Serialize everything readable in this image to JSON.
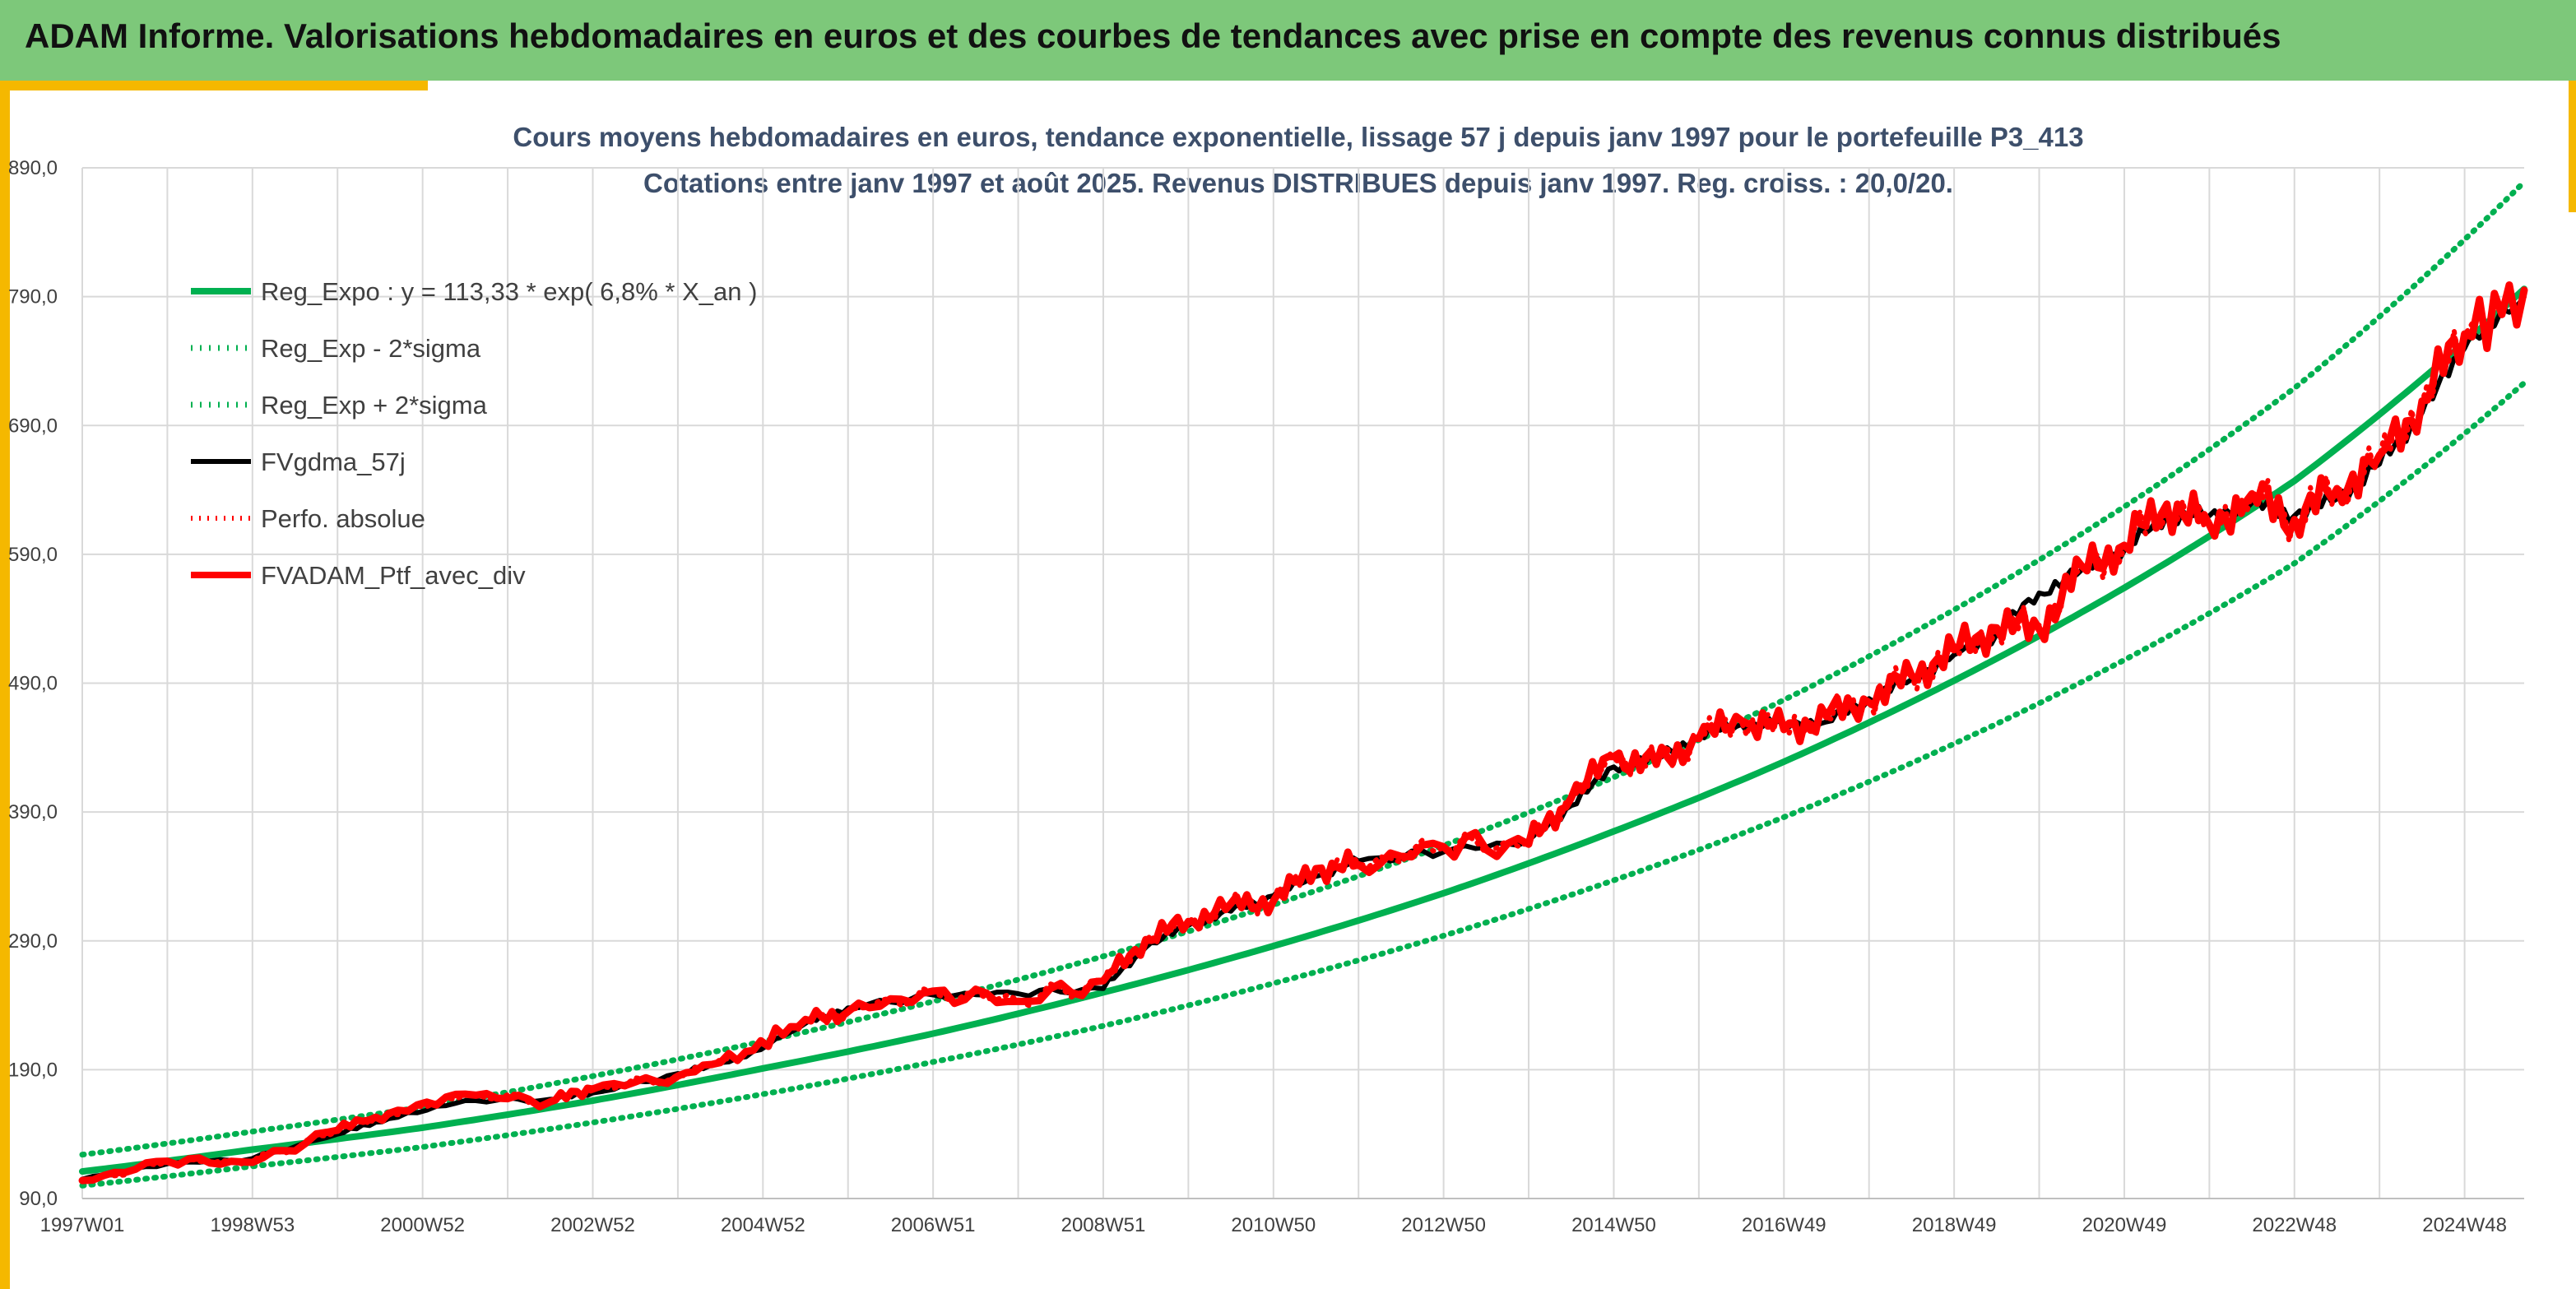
{
  "header": {
    "title": "ADAM Informe. Valorisations hebdomadaires en euros et des courbes de tendances avec prise en compte des revenus connus distribués"
  },
  "colors": {
    "header_bg": "#7dc87a",
    "accent": "#f5b800",
    "reg_expo": "#00b050",
    "fvgdma": "#000000",
    "perf_abs": "#ff0000",
    "fvadam": "#ff0000",
    "grid": "#d9d9d9"
  },
  "chart_data": {
    "type": "line",
    "title": "Cours moyens hebdomadaires en euros, tendance exponentielle, lissage 57 j depuis janv 1997 pour le portefeuille P3_413",
    "subtitle": "Cotations entre janv 1997 et août 2025. Revenus DISTRIBUES depuis janv 1997. Reg. croiss. : 20,0/20.",
    "x_tick_labels": [
      "1997W01",
      "1998W53",
      "2000W52",
      "2002W52",
      "2004W52",
      "2006W51",
      "2008W51",
      "2010W50",
      "2012W50",
      "2014W50",
      "2016W49",
      "2018W49",
      "2020W49",
      "2022W48",
      "2024W48"
    ],
    "x_tick_years": [
      1997.0,
      1999.0,
      2001.0,
      2003.0,
      2005.0,
      2007.0,
      2009.0,
      2011.0,
      2013.0,
      2015.0,
      2017.0,
      2019.0,
      2021.0,
      2023.0,
      2025.0
    ],
    "y_tick_labels": [
      "90,0",
      "190,0",
      "290,0",
      "390,0",
      "490,0",
      "590,0",
      "690,0",
      "790,0",
      "890,0"
    ],
    "ylim": [
      90,
      890
    ],
    "xlim": [
      1997.0,
      2025.7
    ],
    "grid": true,
    "legend_position": "top-left",
    "series": [
      {
        "name": "Reg_Expo : y = 113,33 * exp( 6,8% *  X_an )",
        "style": "solid",
        "x": [
          1997.0,
          1999.0,
          2001.0,
          2003.0,
          2005.0,
          2007.0,
          2009.0,
          2011.0,
          2013.0,
          2015.0,
          2017.0,
          2019.0,
          2021.0,
          2023.0,
          2025.7
        ],
        "y": [
          111,
          128,
          145,
          166,
          191,
          218,
          250,
          286,
          327,
          375,
          429,
          492,
          564,
          647,
          796
        ]
      },
      {
        "name": "Reg_Exp - 2*sigma",
        "style": "dotted",
        "x": [
          1997.0,
          1999.0,
          2001.0,
          2003.0,
          2005.0,
          2007.0,
          2009.0,
          2011.0,
          2013.0,
          2015.0,
          2017.0,
          2019.0,
          2021.0,
          2023.0,
          2025.7
        ],
        "y": [
          100,
          115,
          130,
          149,
          171,
          196,
          224,
          257,
          294,
          337,
          386,
          443,
          508,
          583,
          723
        ]
      },
      {
        "name": "Reg_Exp + 2*sigma",
        "style": "dotted",
        "x": [
          1997.0,
          1999.0,
          2001.0,
          2003.0,
          2005.0,
          2007.0,
          2009.0,
          2011.0,
          2013.0,
          2015.0,
          2017.0,
          2019.0,
          2021.0,
          2023.0,
          2025.7
        ],
        "y": [
          124,
          142,
          161,
          185,
          212,
          243,
          278,
          318,
          364,
          417,
          477,
          547,
          627,
          719,
          879
        ]
      },
      {
        "name": "FVgdma_57j",
        "style": "solid",
        "x": [
          1997.0,
          1998.0,
          1999.0,
          2000.0,
          2000.6,
          2001.5,
          2002.5,
          2003.0,
          2004.0,
          2004.8,
          2005.5,
          2006.0,
          2007.0,
          2008.0,
          2009.0,
          2009.5,
          2010.0,
          2010.5,
          2011.0,
          2011.5,
          2012.0,
          2013.0,
          2014.0,
          2014.5,
          2015.0,
          2015.5,
          2016.0,
          2016.5,
          2017.0,
          2017.5,
          2018.0,
          2018.5,
          2019.0,
          2019.5,
          2020.0,
          2020.5,
          2021.0,
          2021.5,
          2022.0,
          2022.5,
          2023.0,
          2023.5,
          2024.0,
          2024.5,
          2025.0,
          2025.7
        ],
        "y": [
          105,
          117,
          121,
          140,
          152,
          166,
          167,
          172,
          187,
          200,
          226,
          238,
          248,
          249,
          253,
          285,
          302,
          313,
          325,
          340,
          352,
          359,
          368,
          395,
          425,
          432,
          449,
          458,
          459,
          460,
          478,
          493,
          512,
          528,
          560,
          578,
          593,
          620,
          620,
          630,
          620,
          633,
          660,
          700,
          750,
          790
        ]
      },
      {
        "name": "Perfo. absolue",
        "style": "dotted",
        "x": [
          1997.0,
          1998.0,
          1999.0,
          2000.0,
          2000.6,
          2001.5,
          2002.5,
          2003.0,
          2004.0,
          2004.8,
          2005.5,
          2006.0,
          2007.0,
          2008.0,
          2009.0,
          2009.5,
          2010.0,
          2010.5,
          2011.0,
          2011.5,
          2012.0,
          2013.0,
          2014.0,
          2014.5,
          2015.0,
          2015.5,
          2016.0,
          2016.5,
          2017.0,
          2017.5,
          2018.0,
          2018.5,
          2019.0,
          2019.5,
          2020.0,
          2020.5,
          2021.0,
          2021.5,
          2022.0,
          2022.5,
          2023.0,
          2023.5,
          2024.0,
          2024.5,
          2025.0,
          2025.7
        ],
        "y": [
          103,
          118,
          119,
          142,
          155,
          170,
          166,
          174,
          186,
          203,
          228,
          236,
          250,
          244,
          258,
          290,
          304,
          318,
          322,
          345,
          350,
          362,
          366,
          400,
          432,
          428,
          448,
          460,
          455,
          463,
          476,
          495,
          515,
          532,
          535,
          580,
          596,
          628,
          614,
          636,
          618,
          640,
          666,
          708,
          760,
          793
        ]
      },
      {
        "name": "FVADAM_Ptf_avec_div",
        "style": "solid",
        "x": [
          1997.0,
          1998.0,
          1999.0,
          2000.0,
          2000.6,
          2001.5,
          2002.5,
          2003.0,
          2004.0,
          2004.8,
          2005.5,
          2006.0,
          2007.0,
          2008.0,
          2009.0,
          2009.5,
          2010.0,
          2010.5,
          2011.0,
          2011.5,
          2012.0,
          2013.0,
          2014.0,
          2014.5,
          2015.0,
          2015.5,
          2016.0,
          2016.5,
          2017.0,
          2017.5,
          2018.0,
          2018.5,
          2019.0,
          2019.5,
          2020.0,
          2020.5,
          2021.0,
          2021.5,
          2022.0,
          2022.5,
          2023.0,
          2023.5,
          2024.0,
          2024.5,
          2025.0,
          2025.7
        ],
        "y": [
          104,
          119,
          118,
          143,
          156,
          171,
          165,
          175,
          185,
          204,
          229,
          235,
          251,
          243,
          259,
          291,
          305,
          319,
          321,
          346,
          349,
          363,
          365,
          401,
          433,
          427,
          447,
          461,
          454,
          464,
          475,
          496,
          516,
          533,
          532,
          581,
          597,
          629,
          613,
          637,
          617,
          641,
          667,
          709,
          761,
          795
        ]
      }
    ]
  }
}
